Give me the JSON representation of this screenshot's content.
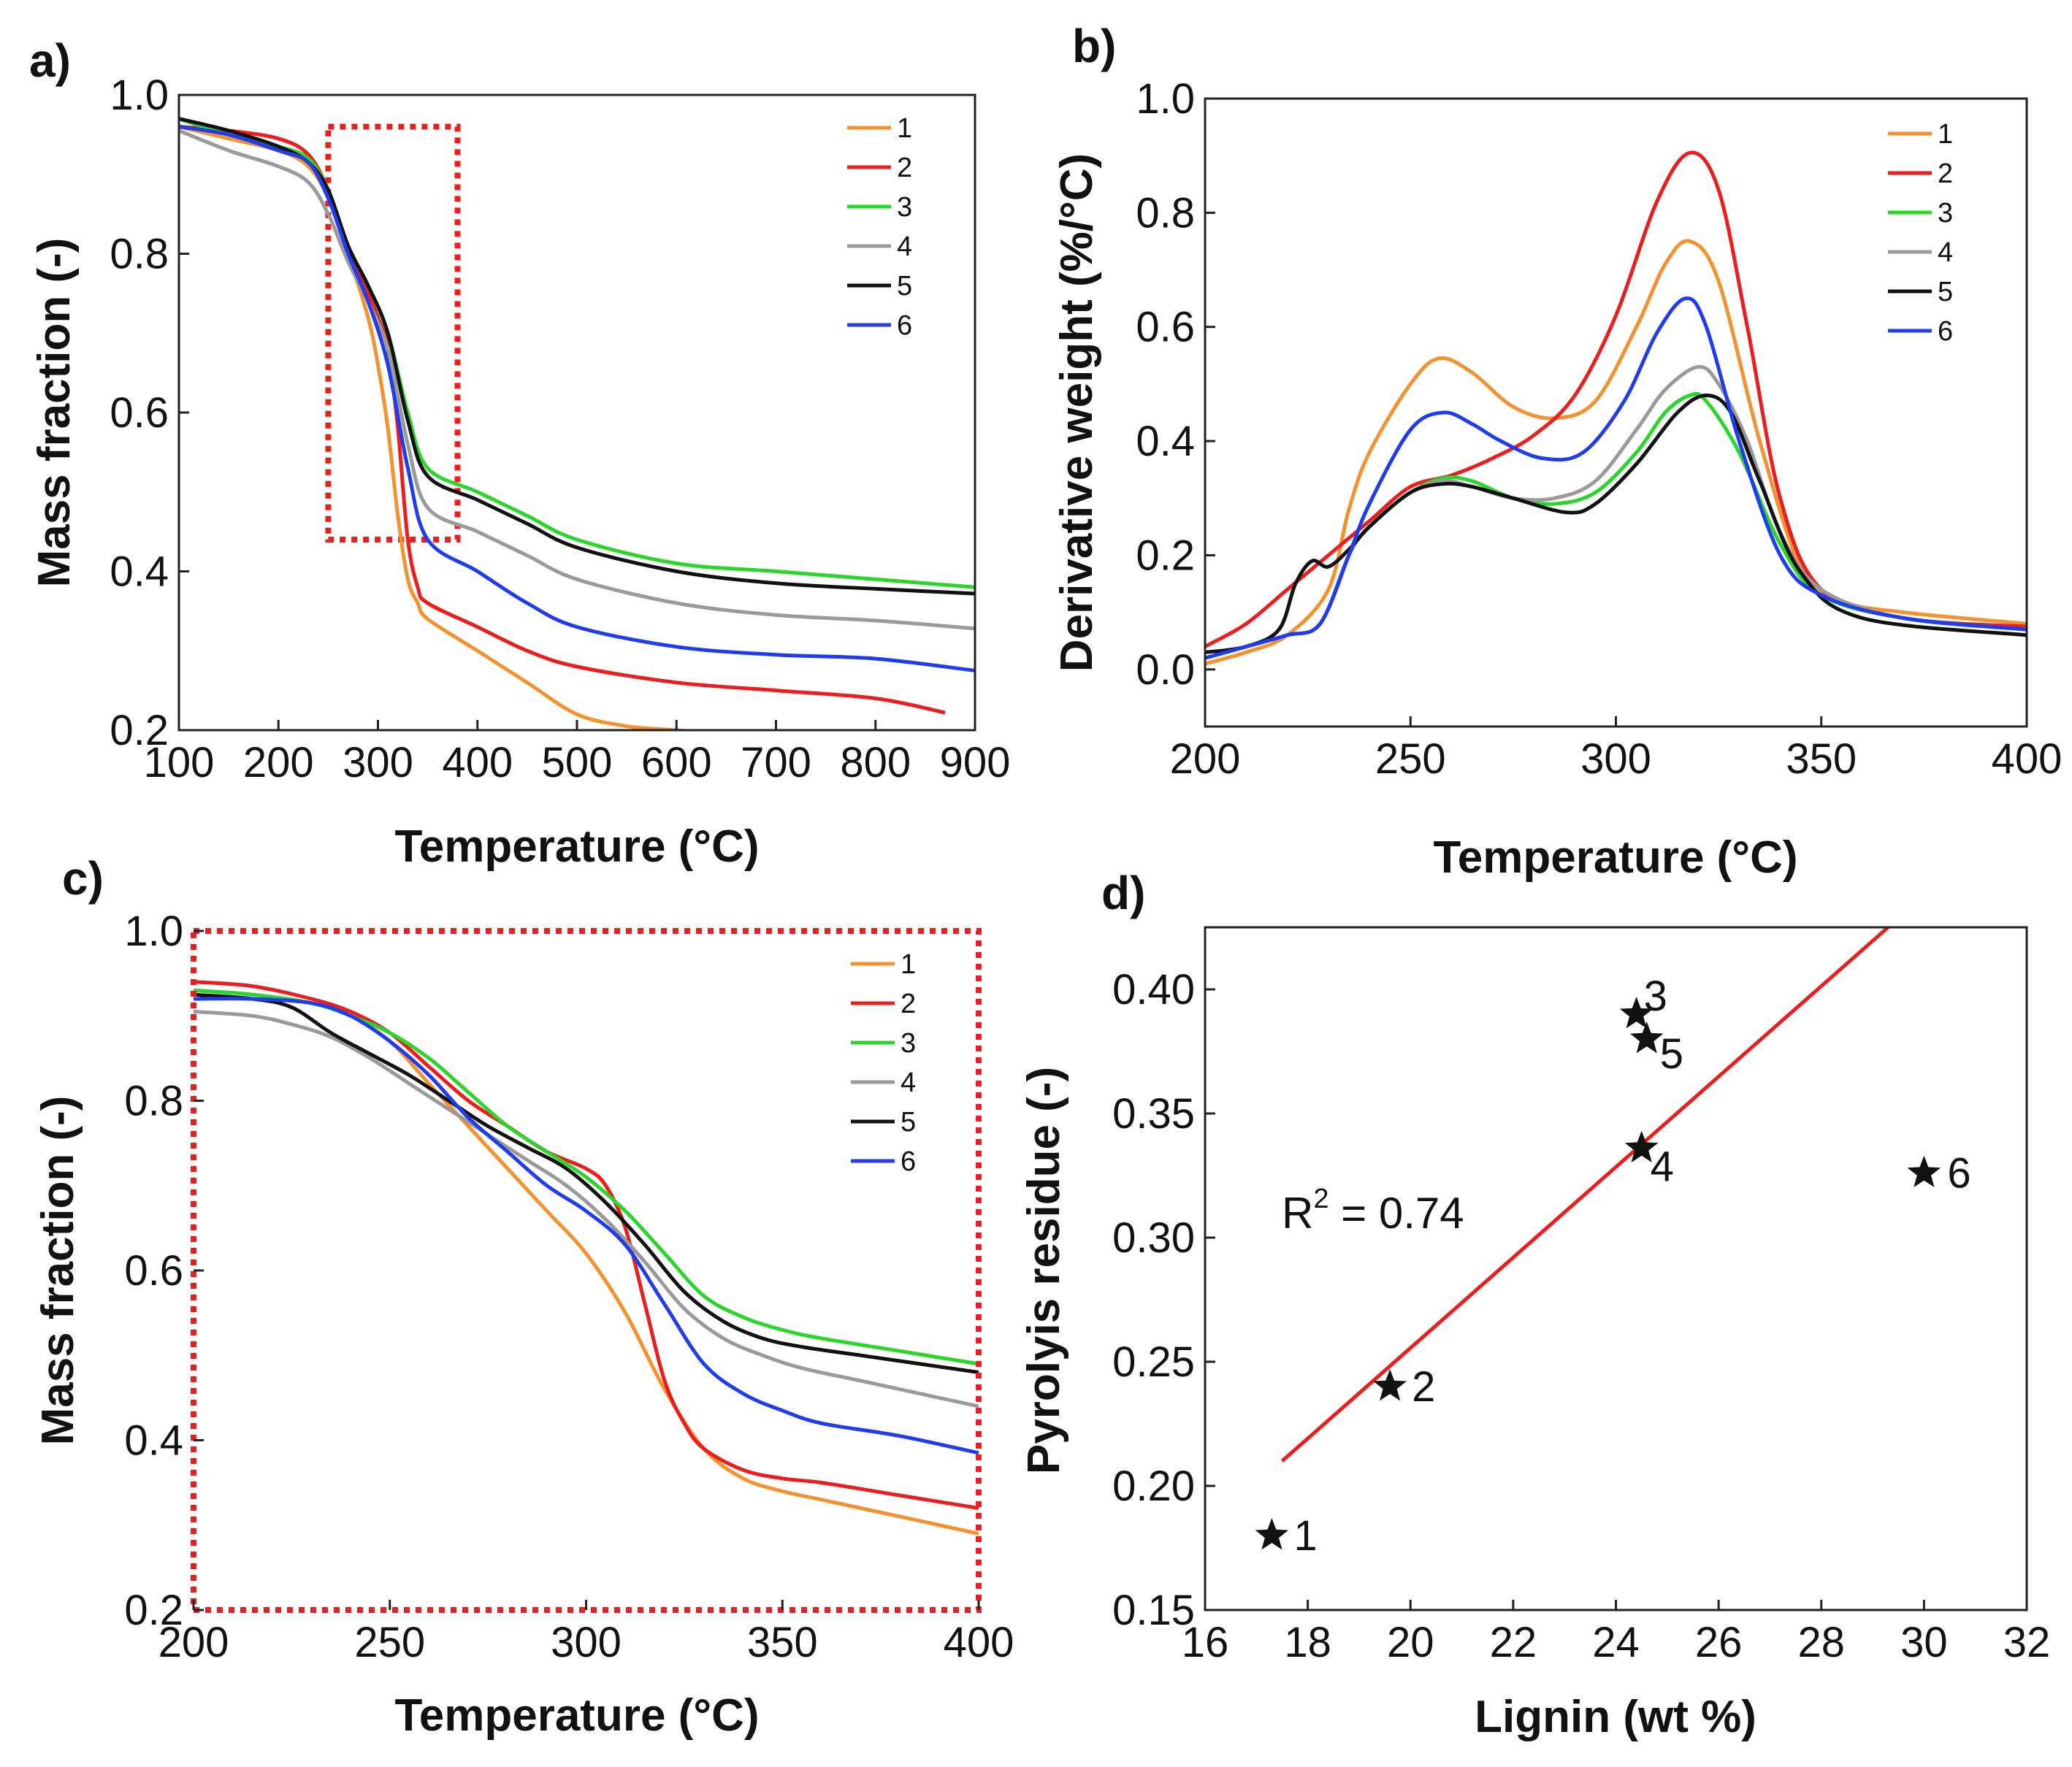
{
  "series_colors": {
    "1": "#f5922f",
    "2": "#ee1c1c",
    "3": "#2bd62b",
    "4": "#9a9a9a",
    "5": "#111111",
    "6": "#1f3cf0"
  },
  "chart_data": [
    {
      "id": "a",
      "panel_label": "a)",
      "type": "line",
      "xlabel": "Temperature (°C)",
      "ylabel": "Mass fraction (-)",
      "xlim": [
        100,
        900
      ],
      "ylim": [
        0.2,
        1.0
      ],
      "xticks": [
        100,
        200,
        300,
        400,
        500,
        600,
        700,
        800,
        900
      ],
      "yticks": [
        0.2,
        0.4,
        0.6,
        0.8,
        1.0
      ],
      "ytick_labels": [
        "0.2",
        "0.4",
        "0.6",
        "0.8",
        "1.0"
      ],
      "highlight_box": {
        "x": [
          250,
          380
        ],
        "y": [
          0.44,
          0.96
        ]
      },
      "legend": [
        "1",
        "2",
        "3",
        "4",
        "5",
        "6"
      ],
      "series": [
        {
          "name": "1",
          "x": [
            100,
            150,
            200,
            230,
            250,
            270,
            290,
            300,
            310,
            320,
            330,
            340,
            350,
            400,
            450,
            500,
            550,
            600,
            620
          ],
          "y": [
            0.96,
            0.945,
            0.93,
            0.91,
            0.87,
            0.8,
            0.72,
            0.66,
            0.58,
            0.47,
            0.39,
            0.36,
            0.34,
            0.3,
            0.26,
            0.22,
            0.205,
            0.2,
            0.198
          ]
        },
        {
          "name": "2",
          "x": [
            100,
            150,
            200,
            230,
            250,
            270,
            290,
            300,
            310,
            320,
            330,
            340,
            350,
            400,
            450,
            500,
            600,
            700,
            800,
            870
          ],
          "y": [
            0.96,
            0.955,
            0.945,
            0.925,
            0.88,
            0.81,
            0.75,
            0.72,
            0.68,
            0.58,
            0.44,
            0.38,
            0.36,
            0.33,
            0.3,
            0.28,
            0.26,
            0.25,
            0.24,
            0.222
          ]
        },
        {
          "name": "3",
          "x": [
            100,
            150,
            200,
            230,
            250,
            270,
            290,
            310,
            330,
            350,
            400,
            450,
            500,
            600,
            700,
            800,
            900
          ],
          "y": [
            0.97,
            0.95,
            0.935,
            0.92,
            0.88,
            0.81,
            0.76,
            0.7,
            0.6,
            0.53,
            0.5,
            0.47,
            0.44,
            0.41,
            0.4,
            0.39,
            0.38
          ]
        },
        {
          "name": "4",
          "x": [
            100,
            150,
            200,
            230,
            250,
            270,
            290,
            310,
            330,
            350,
            400,
            450,
            500,
            600,
            700,
            800,
            900
          ],
          "y": [
            0.955,
            0.93,
            0.91,
            0.89,
            0.85,
            0.79,
            0.74,
            0.68,
            0.56,
            0.48,
            0.45,
            0.42,
            0.39,
            0.36,
            0.345,
            0.338,
            0.328
          ]
        },
        {
          "name": "5",
          "x": [
            100,
            150,
            200,
            230,
            250,
            270,
            290,
            310,
            330,
            350,
            400,
            450,
            500,
            600,
            700,
            800,
            900
          ],
          "y": [
            0.97,
            0.955,
            0.935,
            0.915,
            0.88,
            0.81,
            0.76,
            0.7,
            0.59,
            0.52,
            0.49,
            0.46,
            0.43,
            0.4,
            0.385,
            0.378,
            0.372
          ]
        },
        {
          "name": "6",
          "x": [
            100,
            150,
            200,
            230,
            250,
            270,
            290,
            310,
            330,
            350,
            400,
            450,
            500,
            600,
            700,
            800,
            900
          ],
          "y": [
            0.96,
            0.95,
            0.93,
            0.915,
            0.87,
            0.8,
            0.74,
            0.66,
            0.53,
            0.44,
            0.4,
            0.36,
            0.33,
            0.305,
            0.295,
            0.29,
            0.275
          ]
        }
      ]
    },
    {
      "id": "b",
      "panel_label": "b)",
      "type": "line",
      "xlabel": "Temperature (°C)",
      "ylabel": "Derivative weight (%/°C)",
      "xlim": [
        200,
        400
      ],
      "ylim": [
        -0.1,
        1.0
      ],
      "xticks": [
        200,
        250,
        300,
        350,
        400
      ],
      "yticks": [
        0.0,
        0.2,
        0.4,
        0.6,
        0.8,
        1.0
      ],
      "ytick_labels": [
        "0.0",
        "0.2",
        "0.4",
        "0.6",
        "0.8",
        "1.0"
      ],
      "legend": [
        "1",
        "2",
        "3",
        "4",
        "5",
        "6"
      ],
      "series": [
        {
          "name": "1",
          "x": [
            200,
            210,
            220,
            230,
            235,
            240,
            250,
            257,
            265,
            275,
            285,
            295,
            305,
            312,
            318,
            325,
            335,
            345,
            355,
            370,
            400
          ],
          "y": [
            0.01,
            0.03,
            0.06,
            0.14,
            0.28,
            0.38,
            0.5,
            0.545,
            0.52,
            0.46,
            0.44,
            0.47,
            0.6,
            0.71,
            0.75,
            0.68,
            0.4,
            0.18,
            0.12,
            0.1,
            0.08
          ]
        },
        {
          "name": "2",
          "x": [
            200,
            210,
            220,
            230,
            240,
            250,
            260,
            270,
            280,
            290,
            300,
            310,
            318,
            325,
            332,
            340,
            350,
            370,
            400
          ],
          "y": [
            0.04,
            0.08,
            0.14,
            0.2,
            0.26,
            0.32,
            0.34,
            0.37,
            0.41,
            0.48,
            0.62,
            0.82,
            0.905,
            0.84,
            0.6,
            0.3,
            0.14,
            0.09,
            0.075
          ]
        },
        {
          "name": "3",
          "x": [
            200,
            210,
            220,
            228,
            235,
            240,
            250,
            258,
            265,
            275,
            285,
            295,
            305,
            312,
            318,
            322,
            330,
            340,
            350,
            370,
            400
          ],
          "y": [
            0.02,
            0.04,
            0.06,
            0.08,
            0.2,
            0.25,
            0.31,
            0.335,
            0.33,
            0.3,
            0.29,
            0.31,
            0.38,
            0.45,
            0.48,
            0.47,
            0.38,
            0.22,
            0.13,
            0.09,
            0.07
          ]
        },
        {
          "name": "4",
          "x": [
            200,
            210,
            220,
            228,
            235,
            240,
            250,
            258,
            265,
            275,
            285,
            295,
            305,
            312,
            320,
            325,
            332,
            340,
            350,
            370,
            400
          ],
          "y": [
            0.02,
            0.04,
            0.06,
            0.08,
            0.2,
            0.25,
            0.31,
            0.33,
            0.32,
            0.3,
            0.3,
            0.33,
            0.42,
            0.49,
            0.53,
            0.5,
            0.4,
            0.24,
            0.14,
            0.09,
            0.07
          ]
        },
        {
          "name": "5",
          "x": [
            200,
            210,
            218,
            222,
            226,
            230,
            235,
            240,
            250,
            258,
            265,
            275,
            288,
            295,
            305,
            315,
            322,
            328,
            335,
            345,
            360,
            400
          ],
          "y": [
            0.03,
            0.04,
            0.07,
            0.15,
            0.19,
            0.18,
            0.21,
            0.25,
            0.31,
            0.325,
            0.32,
            0.3,
            0.275,
            0.29,
            0.36,
            0.45,
            0.48,
            0.45,
            0.33,
            0.17,
            0.09,
            0.06
          ]
        },
        {
          "name": "6",
          "x": [
            200,
            210,
            220,
            228,
            235,
            240,
            250,
            258,
            265,
            272,
            282,
            292,
            302,
            310,
            317,
            322,
            330,
            340,
            350,
            370,
            400
          ],
          "y": [
            0.02,
            0.04,
            0.06,
            0.08,
            0.2,
            0.29,
            0.42,
            0.45,
            0.43,
            0.4,
            0.37,
            0.38,
            0.47,
            0.59,
            0.65,
            0.6,
            0.4,
            0.2,
            0.13,
            0.09,
            0.07
          ]
        }
      ]
    },
    {
      "id": "c",
      "panel_label": "c)",
      "type": "line",
      "xlabel": "Temperature (°C)",
      "ylabel": "Mass fraction (-)",
      "xlim": [
        200,
        400
      ],
      "ylim": [
        0.2,
        1.0
      ],
      "xticks": [
        200,
        250,
        300,
        350,
        400
      ],
      "yticks": [
        0.2,
        0.4,
        0.6,
        0.8,
        1.0
      ],
      "ytick_labels": [
        "0.2",
        "0.4",
        "0.6",
        "0.8",
        "1.0"
      ],
      "dotted_frame": true,
      "legend": [
        "1",
        "2",
        "3",
        "4",
        "5",
        "6"
      ],
      "series": [
        {
          "name": "1",
          "x": [
            200,
            215,
            230,
            240,
            250,
            260,
            270,
            280,
            290,
            300,
            310,
            320,
            330,
            340,
            350,
            360,
            380,
            400
          ],
          "y": [
            0.93,
            0.925,
            0.915,
            0.9,
            0.87,
            0.82,
            0.77,
            0.72,
            0.67,
            0.62,
            0.55,
            0.46,
            0.39,
            0.355,
            0.34,
            0.33,
            0.31,
            0.29
          ]
        },
        {
          "name": "2",
          "x": [
            200,
            215,
            230,
            240,
            250,
            260,
            270,
            280,
            290,
            300,
            305,
            310,
            315,
            320,
            325,
            330,
            340,
            350,
            360,
            380,
            400
          ],
          "y": [
            0.94,
            0.935,
            0.92,
            0.905,
            0.88,
            0.84,
            0.8,
            0.77,
            0.74,
            0.72,
            0.7,
            0.65,
            0.56,
            0.47,
            0.42,
            0.39,
            0.365,
            0.355,
            0.35,
            0.335,
            0.32
          ]
        },
        {
          "name": "3",
          "x": [
            200,
            215,
            230,
            240,
            250,
            260,
            270,
            280,
            290,
            300,
            310,
            320,
            330,
            340,
            350,
            360,
            380,
            400
          ],
          "y": [
            0.93,
            0.925,
            0.915,
            0.9,
            0.88,
            0.85,
            0.81,
            0.77,
            0.74,
            0.71,
            0.67,
            0.62,
            0.57,
            0.545,
            0.53,
            0.52,
            0.505,
            0.49
          ]
        },
        {
          "name": "4",
          "x": [
            200,
            215,
            225,
            235,
            245,
            255,
            265,
            275,
            285,
            295,
            305,
            315,
            325,
            335,
            345,
            355,
            370,
            385,
            400
          ],
          "y": [
            0.905,
            0.9,
            0.89,
            0.875,
            0.85,
            0.82,
            0.79,
            0.76,
            0.73,
            0.7,
            0.66,
            0.61,
            0.555,
            0.52,
            0.5,
            0.485,
            0.47,
            0.455,
            0.44
          ]
        },
        {
          "name": "5",
          "x": [
            200,
            215,
            225,
            235,
            245,
            255,
            265,
            275,
            285,
            295,
            305,
            315,
            325,
            335,
            345,
            355,
            370,
            385,
            400
          ],
          "y": [
            0.925,
            0.92,
            0.91,
            0.88,
            0.855,
            0.83,
            0.8,
            0.77,
            0.745,
            0.72,
            0.68,
            0.63,
            0.575,
            0.54,
            0.52,
            0.51,
            0.5,
            0.49,
            0.48
          ]
        },
        {
          "name": "6",
          "x": [
            200,
            215,
            230,
            240,
            250,
            260,
            270,
            280,
            290,
            300,
            310,
            320,
            330,
            340,
            350,
            360,
            380,
            400
          ],
          "y": [
            0.92,
            0.92,
            0.915,
            0.9,
            0.87,
            0.83,
            0.78,
            0.74,
            0.7,
            0.67,
            0.63,
            0.56,
            0.49,
            0.455,
            0.435,
            0.42,
            0.405,
            0.385
          ]
        }
      ]
    },
    {
      "id": "d",
      "panel_label": "d)",
      "type": "scatter",
      "xlabel": "Lignin (wt %)",
      "ylabel": "Pyrolyis residue (-)",
      "xlim": [
        16,
        32
      ],
      "ylim": [
        0.15,
        0.425
      ],
      "xticks": [
        16,
        18,
        20,
        22,
        24,
        26,
        28,
        30,
        32
      ],
      "yticks": [
        0.15,
        0.2,
        0.25,
        0.3,
        0.35,
        0.4
      ],
      "ytick_labels": [
        "0.15",
        "0.20",
        "0.25",
        "0.30",
        "0.35",
        "0.40"
      ],
      "points": [
        {
          "label": "1",
          "x": 17.3,
          "y": 0.18
        },
        {
          "label": "2",
          "x": 19.6,
          "y": 0.24
        },
        {
          "label": "3",
          "x": 24.4,
          "y": 0.39
        },
        {
          "label": "4",
          "x": 24.5,
          "y": 0.336
        },
        {
          "label": "5",
          "x": 24.6,
          "y": 0.38
        },
        {
          "label": "6",
          "x": 30.0,
          "y": 0.326
        }
      ],
      "fit_line": {
        "x": [
          17.5,
          29.3
        ],
        "y": [
          0.21,
          0.425
        ]
      },
      "r2_label": "R",
      "r2_sup": "2",
      "r2_value": " = 0.74"
    }
  ]
}
